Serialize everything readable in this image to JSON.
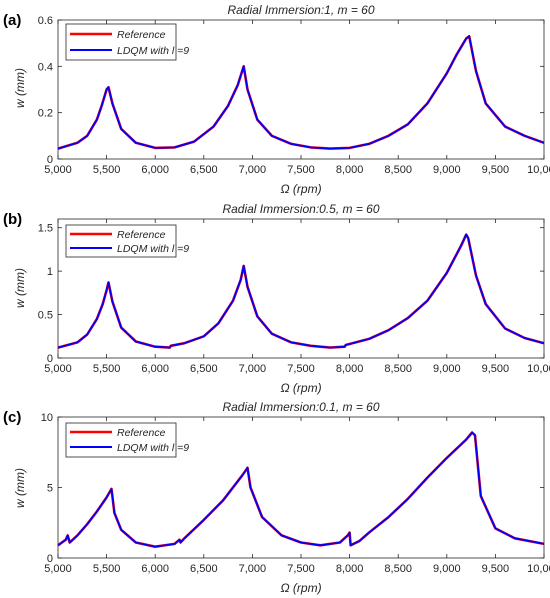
{
  "chart_data": [
    {
      "type": "line",
      "panel_label": "(a)",
      "title": "Radial Immersion:1,  m = 60",
      "xlabel": "Ω (rpm)",
      "ylabel": "w (mm)",
      "xlim": [
        5000,
        10000
      ],
      "ylim": [
        0,
        0.6
      ],
      "xticks": [
        5000,
        5500,
        6000,
        6500,
        7000,
        7500,
        8000,
        8500,
        9000,
        9500,
        10000
      ],
      "xtick_labels": [
        "5,000",
        "5,500",
        "6,000",
        "6,500",
        "7,000",
        "7,500",
        "8,000",
        "8,500",
        "9,000",
        "9,500",
        "10,000"
      ],
      "yticks": [
        0,
        0.2,
        0.4,
        0.6
      ],
      "ytick_labels": [
        "0",
        "0.2",
        "0.4",
        "0.6"
      ],
      "grid": false,
      "legend_position": "top-left",
      "series": [
        {
          "name": "Reference",
          "color": "#ff0000"
        },
        {
          "name": "LDQM  with  l =9",
          "color": "#0000ff"
        }
      ],
      "x": [
        5000,
        5200,
        5300,
        5400,
        5450,
        5500,
        5520,
        5560,
        5650,
        5800,
        6000,
        6200,
        6400,
        6600,
        6750,
        6850,
        6910,
        6950,
        7050,
        7200,
        7400,
        7600,
        7800,
        8000,
        8200,
        8400,
        8600,
        8800,
        9000,
        9100,
        9200,
        9230,
        9300,
        9400,
        9600,
        9800,
        10000
      ],
      "values": [
        0.045,
        0.07,
        0.1,
        0.17,
        0.23,
        0.3,
        0.31,
        0.24,
        0.13,
        0.07,
        0.048,
        0.05,
        0.075,
        0.14,
        0.23,
        0.32,
        0.4,
        0.3,
        0.17,
        0.1,
        0.065,
        0.05,
        0.045,
        0.048,
        0.065,
        0.1,
        0.15,
        0.24,
        0.37,
        0.45,
        0.52,
        0.53,
        0.38,
        0.24,
        0.14,
        0.1,
        0.07
      ]
    },
    {
      "type": "line",
      "panel_label": "(b)",
      "title": "Radial Immersion:0.5,  m = 60",
      "xlabel": "Ω (rpm)",
      "ylabel": "w (mm)",
      "xlim": [
        5000,
        10000
      ],
      "ylim": [
        0,
        1.6
      ],
      "xticks": [
        5000,
        5500,
        6000,
        6500,
        7000,
        7500,
        8000,
        8500,
        9000,
        9500,
        10000
      ],
      "xtick_labels": [
        "5,000",
        "5,500",
        "6,000",
        "6,500",
        "7,000",
        "7,500",
        "8,000",
        "8,500",
        "9,000",
        "9,500",
        "10,000"
      ],
      "yticks": [
        0,
        0.5,
        1,
        1.5
      ],
      "ytick_labels": [
        "0",
        "0.5",
        "1",
        "1.5"
      ],
      "grid": false,
      "legend_position": "top-left",
      "series": [
        {
          "name": "Reference",
          "color": "#ff0000"
        },
        {
          "name": "LDQM  with  l =9",
          "color": "#0000ff"
        }
      ],
      "x": [
        5000,
        5200,
        5300,
        5400,
        5460,
        5500,
        5520,
        5560,
        5650,
        5800,
        6000,
        6150,
        6160,
        6300,
        6500,
        6650,
        6800,
        6880,
        6910,
        6950,
        7050,
        7200,
        7400,
        7600,
        7800,
        7950,
        7960,
        8200,
        8400,
        8600,
        8800,
        9000,
        9150,
        9200,
        9220,
        9300,
        9400,
        9600,
        9800,
        10000
      ],
      "values": [
        0.12,
        0.18,
        0.27,
        0.45,
        0.62,
        0.78,
        0.87,
        0.65,
        0.35,
        0.19,
        0.13,
        0.12,
        0.14,
        0.17,
        0.25,
        0.4,
        0.66,
        0.9,
        1.06,
        0.82,
        0.48,
        0.28,
        0.18,
        0.14,
        0.12,
        0.13,
        0.15,
        0.22,
        0.32,
        0.46,
        0.66,
        0.98,
        1.3,
        1.42,
        1.38,
        0.95,
        0.62,
        0.34,
        0.23,
        0.17
      ]
    },
    {
      "type": "line",
      "panel_label": "(c)",
      "title": "Radial Immersion:0.1,  m = 60",
      "xlabel": "Ω (rpm)",
      "ylabel": "w (mm)",
      "xlim": [
        5000,
        10000
      ],
      "ylim": [
        0,
        10
      ],
      "xticks": [
        5000,
        5500,
        6000,
        6500,
        7000,
        7500,
        8000,
        8500,
        9000,
        9500,
        10000
      ],
      "xtick_labels": [
        "5,000",
        "5,500",
        "6,000",
        "6,500",
        "7,000",
        "7,500",
        "8,000",
        "8,500",
        "9,000",
        "9,500",
        "10,000"
      ],
      "yticks": [
        0,
        5,
        10
      ],
      "ytick_labels": [
        "0",
        "5",
        "10"
      ],
      "grid": false,
      "legend_position": "top-left",
      "series": [
        {
          "name": "Reference",
          "color": "#ff0000"
        },
        {
          "name": "LDQM  with  l =9",
          "color": "#0000ff"
        }
      ],
      "x": [
        5000,
        5080,
        5100,
        5120,
        5200,
        5300,
        5400,
        5500,
        5550,
        5580,
        5650,
        5800,
        6000,
        6200,
        6250,
        6260,
        6300,
        6500,
        6700,
        6900,
        6950,
        6980,
        7100,
        7300,
        7500,
        7700,
        7900,
        7980,
        8000,
        8010,
        8100,
        8200,
        8400,
        8600,
        8800,
        9000,
        9200,
        9260,
        9290,
        9350,
        9500,
        9700,
        10000
      ],
      "values": [
        0.9,
        1.3,
        1.6,
        1.1,
        1.6,
        2.4,
        3.3,
        4.3,
        4.9,
        3.2,
        2.0,
        1.1,
        0.8,
        1.0,
        1.3,
        1.1,
        1.4,
        2.7,
        4.1,
        5.9,
        6.4,
        5.0,
        2.9,
        1.6,
        1.1,
        0.9,
        1.1,
        1.6,
        1.8,
        0.9,
        1.2,
        1.8,
        2.9,
        4.2,
        5.7,
        7.1,
        8.4,
        8.9,
        8.7,
        4.4,
        2.1,
        1.4,
        1.0
      ]
    }
  ]
}
